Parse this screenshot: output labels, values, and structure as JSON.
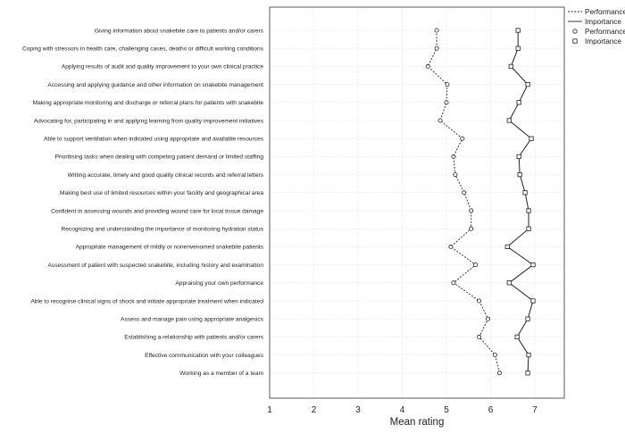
{
  "chart_data": {
    "type": "line",
    "title": "",
    "xlabel": "Mean rating",
    "ylabel": "",
    "xlim": [
      1,
      7.6
    ],
    "xticks": [
      1,
      2,
      3,
      4,
      5,
      6,
      7
    ],
    "grid": true,
    "legend_position": "top-right",
    "categories": [
      "Giving information about snakebite care to patients and/or carers",
      "Coping with stressors in health care, challenging cases, deaths or difficult working conditions",
      "Applying results of audit and quality improvement to your own clinical practice",
      "Accessing and applying guidance and other information on snakebite management",
      "Making appropriate monitoring and discharge or referral plans for patients with snakebite",
      "Advocating for, participating in and applying learning from quality improvement initiatives",
      "Able to support ventilation when indicated using appropriate and available resources",
      "Prioritising tasks when dealing with competing patient demand or limited staffing",
      "Writing accurate, timely and good quality clinical records and referral letters",
      "Making best use of limited resources within your facility and geographical area",
      "Confident in assessing wounds and providing wound care for local tissue damage",
      "Recognizing and understanding the importance of monitoring hydration status",
      "Appropriate management of mildly or nonenvenomed snakebite patients",
      "Assessment of patient with suspected snakebite, including history and examination",
      "Appraising your own performance",
      "Able to recognise clinical signs of shock and initiate appropriate treatment when indicated",
      "Assess and manage pain using appropriate analgesics",
      "Establishing a relationship with patients and/or carers",
      "Effective communication with your colleagues",
      "Working as a member of a team"
    ],
    "series": [
      {
        "name": "Performance",
        "line_style": "dashed",
        "marker": "circle",
        "values": [
          4.78,
          4.78,
          4.58,
          5.02,
          5.0,
          4.86,
          5.36,
          5.16,
          5.2,
          5.4,
          5.56,
          5.56,
          5.1,
          5.66,
          5.16,
          5.74,
          5.94,
          5.74,
          6.1,
          6.2
        ]
      },
      {
        "name": "Importance",
        "line_style": "solid",
        "marker": "square",
        "values": [
          6.62,
          6.62,
          6.46,
          6.84,
          6.64,
          6.42,
          6.92,
          6.64,
          6.66,
          6.78,
          6.86,
          6.86,
          6.38,
          6.96,
          6.42,
          6.96,
          6.84,
          6.6,
          6.86,
          6.84
        ]
      }
    ]
  },
  "legend": {
    "line_performance": "Performance",
    "line_importance": "Importance",
    "marker_performance": "Performance",
    "marker_importance": "Importance"
  },
  "colors": {
    "line": "#222222",
    "marker_fill": "#ffffff",
    "grid": "#e3e3e3"
  }
}
